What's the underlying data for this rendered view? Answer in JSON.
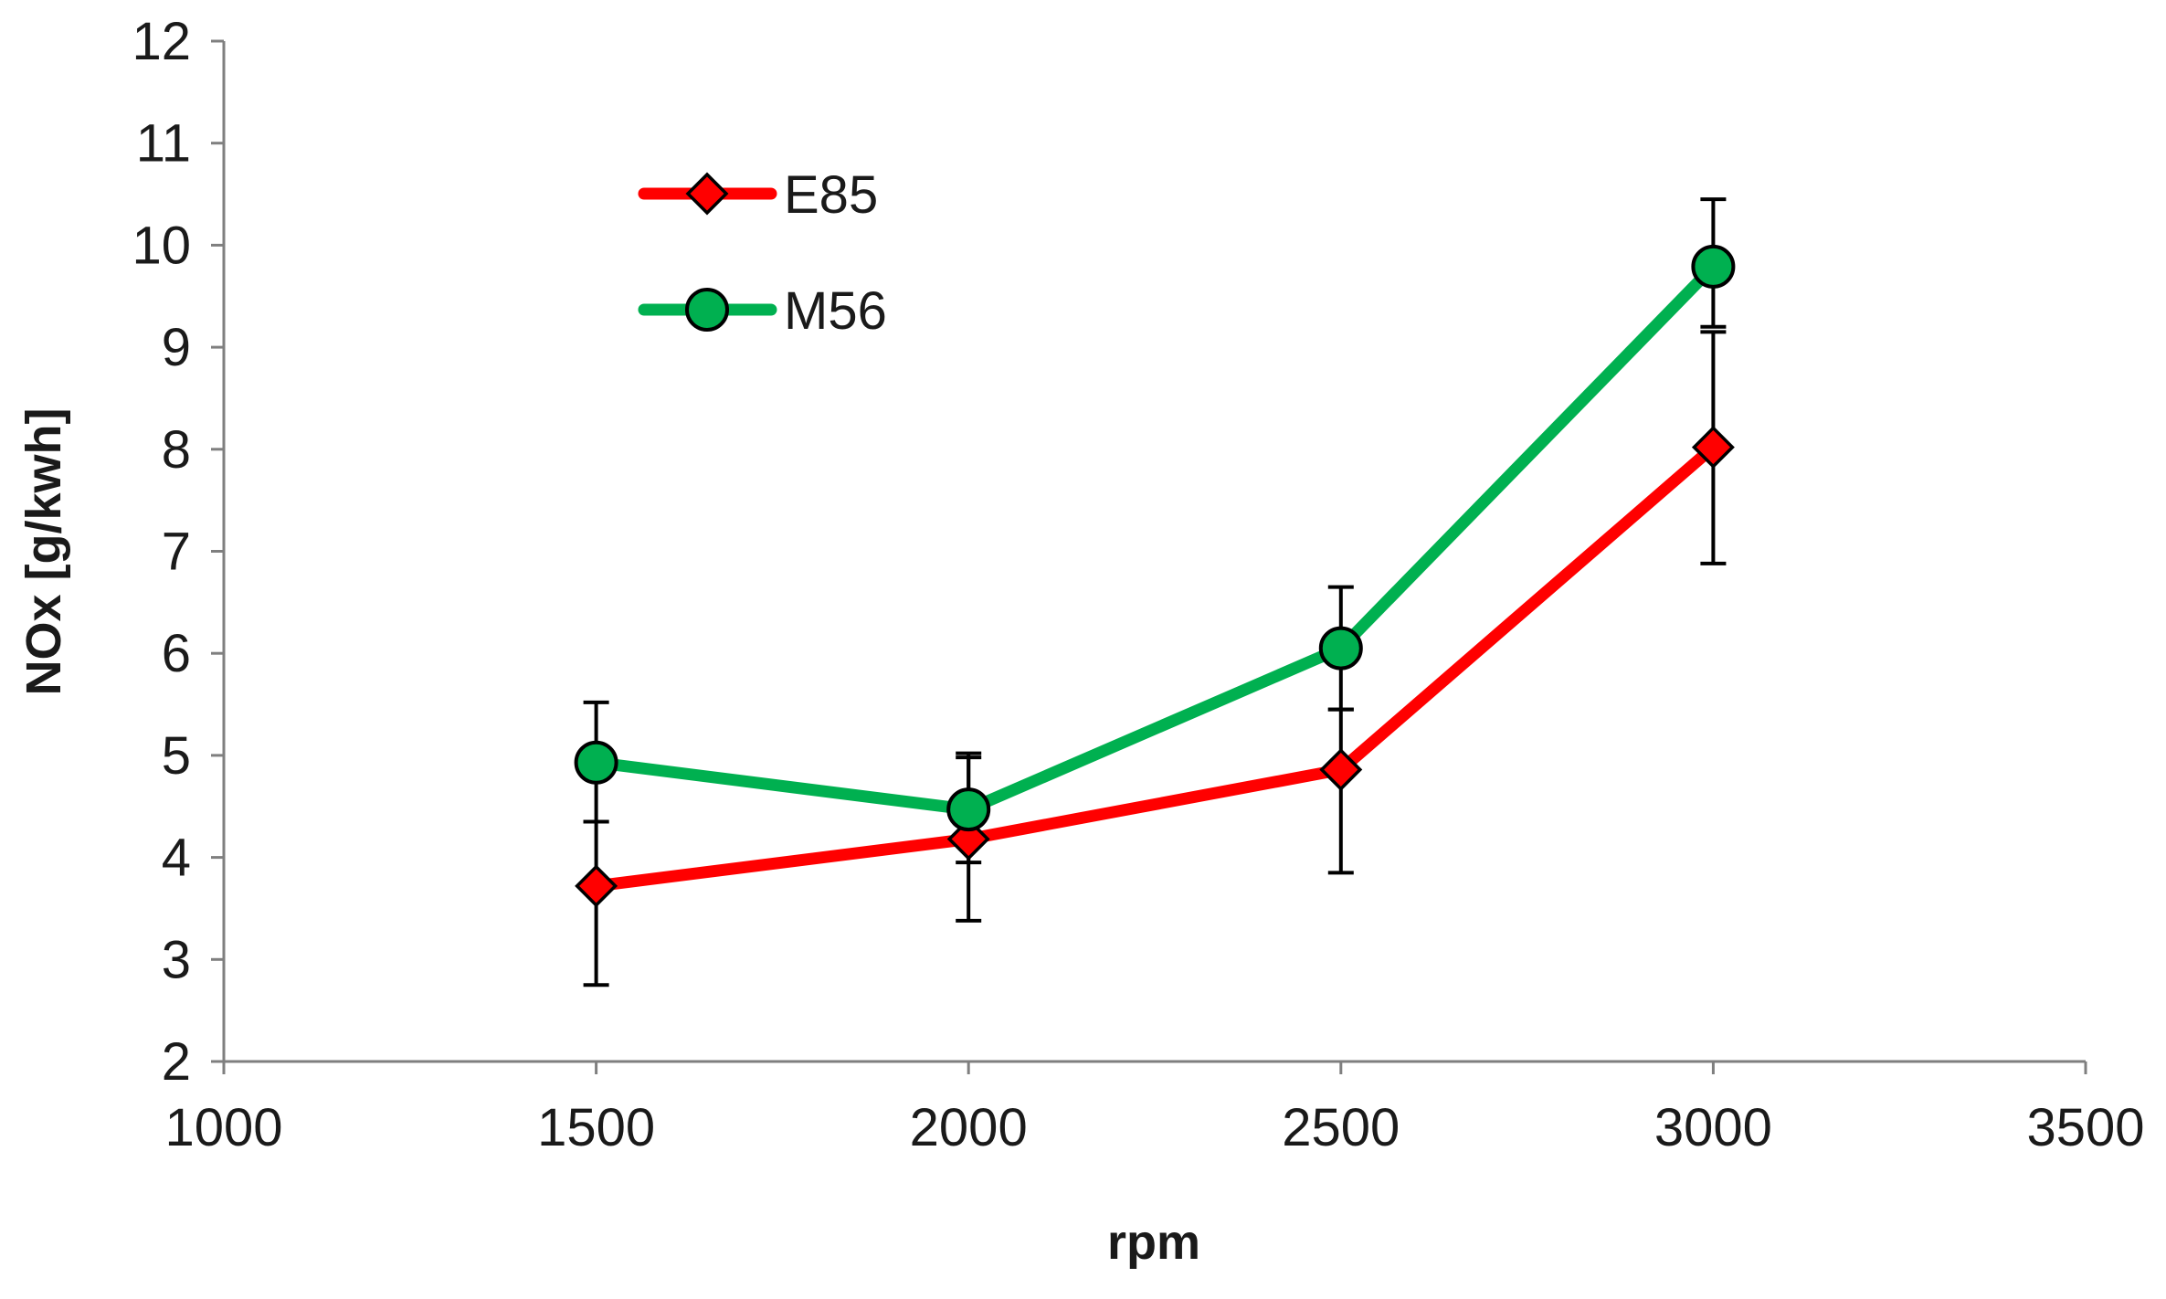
{
  "chart_data": {
    "type": "line",
    "title": "",
    "xlabel": "rpm",
    "ylabel": "NOx [g/kwh]",
    "xlim": [
      1000,
      3500
    ],
    "ylim": [
      2,
      12
    ],
    "x_ticks": [
      1000,
      1500,
      2000,
      2500,
      3000,
      3500
    ],
    "y_ticks": [
      2,
      3,
      4,
      5,
      6,
      7,
      8,
      9,
      10,
      11,
      12
    ],
    "x_tick_labels": [
      "1000",
      "1500",
      "2000",
      "2500",
      "3000",
      "3500"
    ],
    "y_tick_labels": [
      "2",
      "3",
      "4",
      "5",
      "6",
      "7",
      "8",
      "9",
      "10",
      "11",
      "12"
    ],
    "grid": false,
    "legend_position": "top-left",
    "series": [
      {
        "name": "E85",
        "color": "#ff0000",
        "marker": "diamond",
        "marker_color": "#ff0000",
        "x": [
          1500,
          2000,
          2500,
          3000
        ],
        "values": [
          3.72,
          4.18,
          4.86,
          8.02
        ],
        "error_low": [
          2.75,
          3.38,
          3.85,
          6.88
        ],
        "error_high": [
          4.35,
          4.98,
          5.45,
          9.15
        ]
      },
      {
        "name": "M56",
        "color": "#00b050",
        "marker": "circle",
        "marker_color": "#00b050",
        "x": [
          1500,
          2000,
          2500,
          3000
        ],
        "values": [
          4.93,
          4.47,
          6.05,
          9.79
        ],
        "error_low": [
          4.35,
          3.95,
          5.45,
          9.2
        ],
        "error_high": [
          5.52,
          5.02,
          6.65,
          10.45
        ]
      }
    ]
  }
}
